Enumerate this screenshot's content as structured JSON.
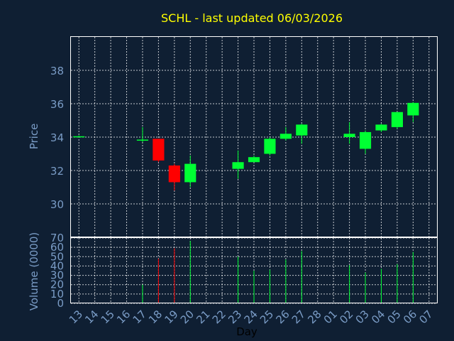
{
  "chart_data": {
    "type": "candlestick",
    "title": "SCHL - last updated 06/03/2026",
    "xlabel": "Day",
    "colors": {
      "up": "#00ff33",
      "down": "#ff0000",
      "background": "#0f1f33",
      "title": "#ffff00",
      "axis_text": "#7a9cc6",
      "grid": "#ffffff"
    },
    "x_ticks": [
      "13",
      "14",
      "15",
      "16",
      "17",
      "18",
      "19",
      "20",
      "21",
      "22",
      "23",
      "24",
      "25",
      "26",
      "27",
      "28",
      "01",
      "02",
      "03",
      "04",
      "05",
      "06",
      "07"
    ],
    "price_panel": {
      "ylabel": "Price",
      "ylim": [
        28.0,
        40.0
      ],
      "yticks": [
        30,
        32,
        34,
        36,
        38
      ],
      "grid": true
    },
    "volume_panel": {
      "ylabel": "Volume (0000)",
      "ylim": [
        0,
        70
      ],
      "yticks": [
        0,
        10,
        20,
        30,
        40,
        50,
        60,
        70
      ],
      "grid": true
    },
    "candles": [
      {
        "day": "13",
        "open": 34.0,
        "high": 34.1,
        "low": 34.0,
        "close": 34.05,
        "volume": 0
      },
      {
        "day": "17",
        "open": 33.8,
        "high": 34.6,
        "low": 33.7,
        "close": 33.85,
        "volume": 20
      },
      {
        "day": "18",
        "open": 33.9,
        "high": 33.9,
        "low": 32.5,
        "close": 32.6,
        "volume": 48
      },
      {
        "day": "19",
        "open": 32.3,
        "high": 32.4,
        "low": 30.8,
        "close": 31.3,
        "volume": 59
      },
      {
        "day": "20",
        "open": 31.3,
        "high": 32.9,
        "low": 31.0,
        "close": 32.4,
        "volume": 67
      },
      {
        "day": "23",
        "open": 32.1,
        "high": 33.2,
        "low": 31.5,
        "close": 32.5,
        "volume": 50
      },
      {
        "day": "24",
        "open": 32.5,
        "high": 32.9,
        "low": 32.5,
        "close": 32.8,
        "volume": 35
      },
      {
        "day": "25",
        "open": 33.0,
        "high": 34.0,
        "low": 32.9,
        "close": 33.9,
        "volume": 36
      },
      {
        "day": "26",
        "open": 33.9,
        "high": 34.6,
        "low": 33.8,
        "close": 34.2,
        "volume": 47
      },
      {
        "day": "27",
        "open": 34.1,
        "high": 34.8,
        "low": 33.6,
        "close": 34.75,
        "volume": 56
      },
      {
        "day": "02",
        "open": 34.0,
        "high": 34.9,
        "low": 33.6,
        "close": 34.2,
        "volume": 41
      },
      {
        "day": "03",
        "open": 33.3,
        "high": 34.4,
        "low": 33.0,
        "close": 34.3,
        "volume": 33
      },
      {
        "day": "04",
        "open": 34.4,
        "high": 34.8,
        "low": 34.3,
        "close": 34.75,
        "volume": 37
      },
      {
        "day": "05",
        "open": 34.6,
        "high": 35.5,
        "low": 34.5,
        "close": 35.5,
        "volume": 42
      },
      {
        "day": "06",
        "open": 35.3,
        "high": 36.1,
        "low": 34.9,
        "close": 36.05,
        "volume": 55
      }
    ]
  }
}
